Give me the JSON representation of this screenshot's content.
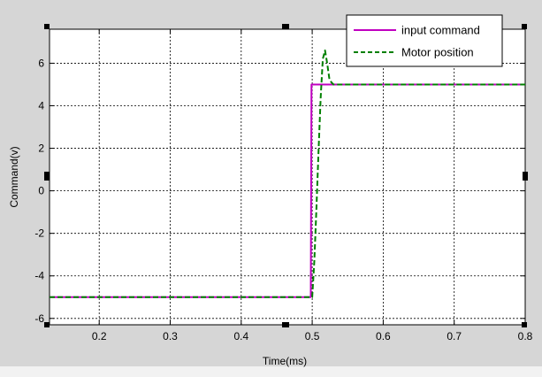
{
  "chart_data": {
    "type": "line",
    "xlabel": "Time(ms)",
    "ylabel": "Command(v)",
    "xlim": [
      0.13,
      0.8
    ],
    "ylim": [
      -6.3,
      7.6
    ],
    "grid": true,
    "legend_position": "top-right",
    "x_ticks": [
      0.2,
      0.3,
      0.4,
      0.5,
      0.6,
      0.7,
      0.8
    ],
    "x_tick_labels": [
      "0.2",
      "0.3",
      "0.4",
      "0.5",
      "0.6",
      "0.7",
      "0.8"
    ],
    "y_ticks": [
      -6,
      -4,
      -2,
      0,
      2,
      4,
      6
    ],
    "y_tick_labels": [
      "-6",
      "-4",
      "-2",
      "0",
      "2",
      "4",
      "6"
    ],
    "series": [
      {
        "name": "input command",
        "color": "#c000c0",
        "style": "solid",
        "x": [
          0.13,
          0.498,
          0.499,
          0.8
        ],
        "y": [
          -5,
          -5,
          5,
          5
        ]
      },
      {
        "name": "Motor position",
        "color": "#008000",
        "style": "dashed",
        "x": [
          0.13,
          0.5,
          0.503,
          0.506,
          0.509,
          0.512,
          0.515,
          0.518,
          0.521,
          0.524,
          0.527,
          0.53,
          0.535,
          0.54,
          0.8
        ],
        "y": [
          -5,
          -5,
          -3.3,
          -0.8,
          1.9,
          4.4,
          6.2,
          6.6,
          6.0,
          5.3,
          5.1,
          5.0,
          5.0,
          5.0,
          5.0
        ]
      }
    ]
  }
}
